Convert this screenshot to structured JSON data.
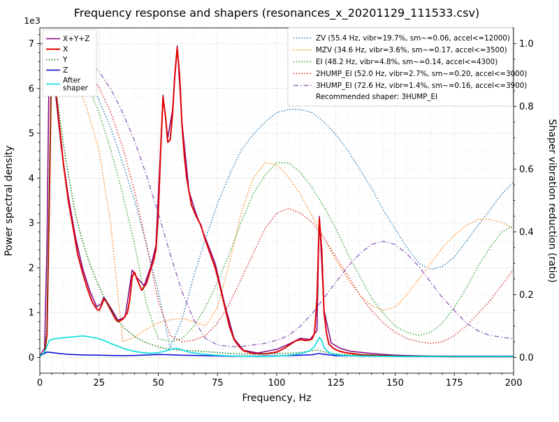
{
  "chart_data": {
    "type": "line",
    "title": "Frequency response and shapers (resonances_x_20201129_111533.csv)",
    "xlabel": "Frequency, Hz",
    "ylabel_left": "Power spectral density",
    "ylabel_right": "Shaper vibration reduction (ratio)",
    "y_offset": "1e3",
    "xlim": [
      0,
      200
    ],
    "ylim_left": [
      0,
      7000
    ],
    "ylim_right": [
      0,
      1.0
    ],
    "grid": true,
    "xticks": [
      0,
      25,
      50,
      75,
      100,
      125,
      150,
      175,
      200
    ],
    "yticks_left": [
      0,
      1,
      2,
      3,
      4,
      5,
      6,
      7
    ],
    "yticks_right": [
      "0.0",
      "0.2",
      "0.4",
      "0.6",
      "0.8",
      "1.0"
    ],
    "legend_note": "Recommended shaper: 3HUMP_EI",
    "psd_series": [
      {
        "name": "X+Y+Z",
        "legend": "X+Y+Z",
        "color": "#800080",
        "style": "solid",
        "width": 1.5,
        "x": [
          0,
          2,
          3,
          4,
          5,
          7,
          9,
          12,
          15,
          18,
          21,
          24,
          26,
          27,
          30,
          33,
          36,
          39,
          41,
          44,
          47,
          49,
          51,
          52,
          54,
          56,
          58,
          60,
          63,
          66,
          70,
          74,
          78,
          82,
          86,
          92,
          100,
          106,
          110,
          114,
          117,
          118,
          120,
          123,
          127,
          131,
          140,
          150,
          165,
          200
        ],
        "y": [
          40,
          200,
          2500,
          6950,
          6700,
          5700,
          4700,
          3600,
          2700,
          2000,
          1500,
          1130,
          1200,
          1350,
          1100,
          830,
          900,
          1950,
          1780,
          1600,
          2050,
          2500,
          4700,
          5850,
          4900,
          5500,
          6950,
          5250,
          3700,
          3200,
          2650,
          2100,
          1200,
          420,
          160,
          100,
          180,
          320,
          430,
          400,
          600,
          3150,
          1050,
          320,
          200,
          140,
          90,
          50,
          30,
          30
        ]
      },
      {
        "name": "X",
        "legend": "X",
        "color": "#e00000",
        "style": "solid",
        "width": 2,
        "x": [
          0,
          2,
          3,
          4,
          5,
          6,
          8,
          10,
          12,
          14,
          16,
          18,
          20,
          22,
          24,
          25,
          26,
          27,
          28,
          30,
          32,
          33,
          35,
          37,
          38,
          39,
          40,
          41,
          43,
          45,
          47,
          48,
          49,
          50,
          51,
          52,
          53,
          54,
          55,
          56,
          57,
          58,
          59,
          60,
          61,
          62,
          64,
          66,
          68,
          70,
          72,
          74,
          76,
          78,
          80,
          82,
          84,
          86,
          90,
          95,
          100,
          103,
          106,
          108,
          110,
          112,
          114,
          115,
          116,
          117,
          118,
          119,
          120,
          121,
          122,
          124,
          126,
          128,
          130,
          133,
          136,
          140,
          145,
          150,
          160,
          175,
          200
        ],
        "y": [
          30,
          100,
          500,
          3500,
          6900,
          6400,
          5300,
          4300,
          3500,
          2900,
          2300,
          1900,
          1550,
          1250,
          1080,
          1050,
          1150,
          1300,
          1250,
          1050,
          850,
          800,
          850,
          1000,
          1300,
          1800,
          1900,
          1750,
          1500,
          1650,
          2000,
          2150,
          2400,
          3200,
          4600,
          5800,
          5400,
          4800,
          4850,
          5400,
          6300,
          6900,
          6300,
          5200,
          4500,
          4000,
          3400,
          3150,
          2950,
          2600,
          2300,
          2000,
          1600,
          1150,
          700,
          400,
          250,
          150,
          90,
          80,
          120,
          200,
          300,
          370,
          400,
          380,
          390,
          420,
          550,
          1300,
          3100,
          2400,
          1000,
          550,
          300,
          200,
          150,
          120,
          100,
          80,
          60,
          50,
          40,
          30,
          25,
          20,
          20
        ]
      },
      {
        "name": "Y",
        "legend": "Y",
        "color": "#007000",
        "style": "dotted",
        "width": 1.5,
        "x": [
          0,
          2,
          3,
          4,
          5,
          7,
          9,
          11,
          13,
          15,
          18,
          21,
          24,
          27,
          30,
          33,
          36,
          40,
          44,
          48,
          52,
          56,
          60,
          65,
          70,
          75,
          80,
          85,
          90,
          95,
          100,
          105,
          110,
          114,
          117,
          119,
          122,
          126,
          130,
          140,
          150,
          165,
          180,
          200
        ],
        "y": [
          30,
          80,
          700,
          4000,
          6500,
          5900,
          5100,
          4400,
          3800,
          3200,
          2600,
          2100,
          1700,
          1350,
          1050,
          820,
          640,
          470,
          350,
          270,
          210,
          180,
          160,
          150,
          130,
          110,
          90,
          80,
          75,
          75,
          85,
          95,
          110,
          140,
          170,
          140,
          100,
          75,
          60,
          50,
          40,
          35,
          30,
          30
        ]
      },
      {
        "name": "Z",
        "legend": "Z",
        "color": "#0000d0",
        "style": "solid",
        "width": 1.5,
        "x": [
          0,
          3,
          5,
          8,
          12,
          16,
          20,
          25,
          30,
          35,
          40,
          45,
          50,
          55,
          60,
          70,
          80,
          90,
          100,
          110,
          115,
          118,
          120,
          125,
          130,
          140,
          160,
          200
        ],
        "y": [
          40,
          120,
          110,
          90,
          70,
          60,
          55,
          50,
          45,
          40,
          45,
          55,
          65,
          60,
          50,
          40,
          30,
          30,
          35,
          50,
          60,
          90,
          70,
          40,
          35,
          30,
          25,
          25
        ]
      },
      {
        "name": "After shaper",
        "legend": "After\nshaper",
        "color": "#00dede",
        "style": "solid",
        "width": 1.6,
        "x": [
          0,
          2,
          4,
          6,
          8,
          10,
          12,
          14,
          16,
          18,
          20,
          22,
          24,
          26,
          28,
          30,
          32,
          34,
          36,
          38,
          40,
          43,
          46,
          49,
          52,
          54,
          56,
          58,
          60,
          63,
          66,
          70,
          74,
          78,
          82,
          86,
          90,
          95,
          100,
          104,
          108,
          111,
          114,
          116,
          117,
          118,
          119,
          120,
          122,
          124,
          127,
          130,
          135,
          140,
          150,
          165,
          200
        ],
        "y": [
          20,
          120,
          380,
          420,
          430,
          440,
          450,
          460,
          470,
          480,
          470,
          450,
          430,
          400,
          360,
          310,
          270,
          230,
          190,
          160,
          135,
          110,
          95,
          100,
          130,
          160,
          190,
          200,
          170,
          120,
          95,
          70,
          50,
          40,
          32,
          28,
          25,
          25,
          30,
          45,
          70,
          100,
          150,
          250,
          350,
          450,
          380,
          220,
          110,
          70,
          50,
          40,
          32,
          28,
          25,
          22,
          20
        ]
      }
    ],
    "shaper_x": [
      0,
      5,
      10,
      15,
      20,
      25,
      30,
      35,
      40,
      45,
      50,
      55,
      60,
      65,
      70,
      75,
      80,
      85,
      90,
      95,
      100,
      105,
      110,
      115,
      120,
      125,
      130,
      135,
      140,
      145,
      150,
      155,
      160,
      165,
      170,
      175,
      180,
      185,
      190,
      195,
      200
    ],
    "shaper_series": [
      {
        "name": "ZV",
        "label": "ZV (55.4 Hz, vibr=19.7%, sm~=0.06, accel<=12000)",
        "color": "#1f77b4",
        "style": "dotted",
        "y": [
          1.0,
          0.995,
          0.975,
          0.94,
          0.89,
          0.82,
          0.73,
          0.62,
          0.5,
          0.36,
          0.21,
          0.03,
          0.12,
          0.26,
          0.38,
          0.49,
          0.58,
          0.66,
          0.71,
          0.75,
          0.78,
          0.79,
          0.79,
          0.78,
          0.75,
          0.71,
          0.66,
          0.6,
          0.54,
          0.47,
          0.41,
          0.35,
          0.3,
          0.28,
          0.29,
          0.32,
          0.37,
          0.42,
          0.47,
          0.52,
          0.56
        ]
      },
      {
        "name": "MZV",
        "label": "MZV (34.6 Hz, vibr=3.6%, sm~=0.17, accel<=3500)",
        "color": "#ff7f0e",
        "style": "dotted",
        "y": [
          1.0,
          0.985,
          0.95,
          0.89,
          0.79,
          0.66,
          0.42,
          0.05,
          0.065,
          0.09,
          0.11,
          0.12,
          0.125,
          0.115,
          0.1,
          0.16,
          0.3,
          0.46,
          0.57,
          0.62,
          0.615,
          0.575,
          0.52,
          0.45,
          0.38,
          0.31,
          0.25,
          0.2,
          0.165,
          0.15,
          0.16,
          0.2,
          0.25,
          0.3,
          0.35,
          0.39,
          0.42,
          0.44,
          0.44,
          0.43,
          0.41
        ]
      },
      {
        "name": "EI",
        "label": "EI (48.2 Hz, vibr=4.8%, sm~=0.14, accel<=4300)",
        "color": "#2ca02c",
        "style": "dotted",
        "y": [
          1.0,
          0.99,
          0.97,
          0.93,
          0.87,
          0.78,
          0.66,
          0.52,
          0.36,
          0.17,
          0.06,
          0.05,
          0.06,
          0.1,
          0.16,
          0.24,
          0.33,
          0.43,
          0.52,
          0.58,
          0.62,
          0.62,
          0.59,
          0.54,
          0.48,
          0.41,
          0.33,
          0.26,
          0.19,
          0.14,
          0.1,
          0.08,
          0.07,
          0.08,
          0.11,
          0.16,
          0.22,
          0.29,
          0.35,
          0.4,
          0.42
        ]
      },
      {
        "name": "2HUMP_EI",
        "label": "2HUMP_EI (52.0 Hz, vibr=2.7%, sm~=0.20, accel<=3000)",
        "color": "#d62728",
        "style": "dotted",
        "y": [
          1.0,
          0.995,
          0.98,
          0.955,
          0.915,
          0.86,
          0.78,
          0.67,
          0.53,
          0.36,
          0.18,
          0.07,
          0.05,
          0.055,
          0.07,
          0.11,
          0.17,
          0.25,
          0.33,
          0.41,
          0.46,
          0.475,
          0.46,
          0.43,
          0.38,
          0.32,
          0.26,
          0.2,
          0.15,
          0.11,
          0.08,
          0.06,
          0.05,
          0.045,
          0.05,
          0.07,
          0.1,
          0.14,
          0.18,
          0.23,
          0.28
        ]
      },
      {
        "name": "3HUMP_EI",
        "label": "3HUMP_EI (72.6 Hz, vibr=1.4%, sm~=0.16, accel<=3900)",
        "color": "#9467bd",
        "style": "dashdot",
        "y": [
          1.0,
          0.998,
          0.99,
          0.975,
          0.95,
          0.91,
          0.855,
          0.78,
          0.69,
          0.58,
          0.46,
          0.33,
          0.21,
          0.12,
          0.06,
          0.04,
          0.035,
          0.035,
          0.04,
          0.045,
          0.055,
          0.07,
          0.1,
          0.14,
          0.19,
          0.24,
          0.29,
          0.33,
          0.36,
          0.37,
          0.36,
          0.33,
          0.29,
          0.24,
          0.19,
          0.15,
          0.11,
          0.085,
          0.07,
          0.065,
          0.06
        ]
      }
    ]
  }
}
